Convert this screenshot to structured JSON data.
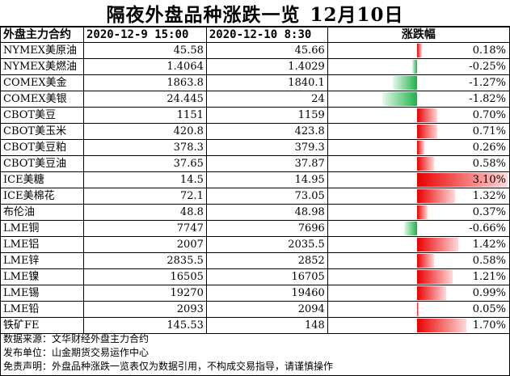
{
  "title": {
    "main": "隔夜外盘品种涨跌一览",
    "date": "12月10日"
  },
  "chart_data": {
    "type": "table",
    "columns": [
      "外盘主力合约",
      "2020-12-9 15:00",
      "2020-12-10 8:30",
      "涨跌幅"
    ],
    "rows": [
      {
        "name": "NYMEX美原油",
        "prev": "45.58",
        "curr": "45.66",
        "change": 0.18,
        "change_label": "0.18%"
      },
      {
        "name": "NYMEX美燃油",
        "prev": "1.4064",
        "curr": "1.4029",
        "change": -0.25,
        "change_label": "-0.25%"
      },
      {
        "name": "COMEX美金",
        "prev": "1863.8",
        "curr": "1840.1",
        "change": -1.27,
        "change_label": "-1.27%"
      },
      {
        "name": "COMEX美银",
        "prev": "24.445",
        "curr": "24",
        "change": -1.82,
        "change_label": "-1.82%"
      },
      {
        "name": "CBOT美豆",
        "prev": "1151",
        "curr": "1159",
        "change": 0.7,
        "change_label": "0.70%"
      },
      {
        "name": "CBOT美玉米",
        "prev": "420.8",
        "curr": "423.8",
        "change": 0.71,
        "change_label": "0.71%"
      },
      {
        "name": "CBOT美豆粕",
        "prev": "378.3",
        "curr": "379.3",
        "change": 0.26,
        "change_label": "0.26%"
      },
      {
        "name": "CBOT美豆油",
        "prev": "37.65",
        "curr": "37.87",
        "change": 0.58,
        "change_label": "0.58%"
      },
      {
        "name": "ICE美糖",
        "prev": "14.5",
        "curr": "14.95",
        "change": 3.1,
        "change_label": "3.10%"
      },
      {
        "name": "ICE美棉花",
        "prev": "72.1",
        "curr": "73.05",
        "change": 1.32,
        "change_label": "1.32%"
      },
      {
        "name": "布伦油",
        "prev": "48.8",
        "curr": "48.98",
        "change": 0.37,
        "change_label": "0.37%"
      },
      {
        "name": "LME铜",
        "prev": "7747",
        "curr": "7696",
        "change": -0.66,
        "change_label": "-0.66%"
      },
      {
        "name": "LME铝",
        "prev": "2007",
        "curr": "2035.5",
        "change": 1.42,
        "change_label": "1.42%"
      },
      {
        "name": "LME锌",
        "prev": "2835.5",
        "curr": "2852",
        "change": 0.58,
        "change_label": "0.58%"
      },
      {
        "name": "LME镍",
        "prev": "16505",
        "curr": "16705",
        "change": 1.21,
        "change_label": "1.21%"
      },
      {
        "name": "LME锡",
        "prev": "19270",
        "curr": "19460",
        "change": 0.99,
        "change_label": "0.99%"
      },
      {
        "name": "LME铅",
        "prev": "2093",
        "curr": "2094",
        "change": 0.05,
        "change_label": "0.05%"
      },
      {
        "name": "铁矿FE",
        "prev": "145.53",
        "curr": "148",
        "change": 1.7,
        "change_label": "1.70%"
      }
    ],
    "colors": {
      "positive": "#e80000",
      "negative": "#1fb14a"
    }
  },
  "footer": {
    "source": "数据来源：文华财经外盘主力合约",
    "publisher": "发布单位：山金期货交易运作中心",
    "disclaimer": "免责声明：外盘品种涨跌一览表仅为数据引用，不构成交易指导，请谨慎操作"
  }
}
